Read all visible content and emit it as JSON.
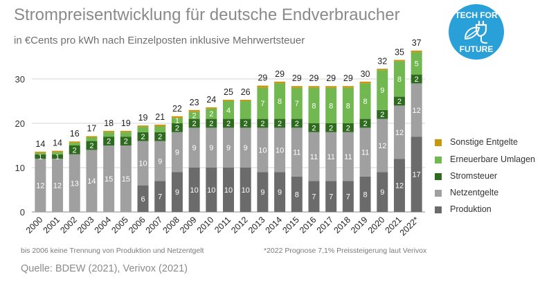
{
  "title": "Strompreisentwicklung für deutsche Endverbraucher",
  "subtitle": "in €Cents pro kWh nach Einzelposten inklusive Mehrwertsteuer",
  "note_left": "bis 2006 keine Trennung von Produktion und Netzentgelt",
  "note_right": "*2022 Prognose 7,1% Preissteigerung laut Verivox",
  "source": "Quelle: BDEW (2021), Verivox (2021)",
  "badge": {
    "top": "TECH FOR",
    "bottom": "FUTURE"
  },
  "colors": {
    "Produktion": "#6b6b6b",
    "Netzentgelte": "#a0a0a0",
    "Stromsteuer": "#2e6b1f",
    "Erneuerbare Umlagen": "#72b850",
    "Sonstige Entgelte": "#c8960f"
  },
  "chart_data": {
    "type": "bar",
    "stacked": true,
    "categories": [
      "2000",
      "2001",
      "2002",
      "2003",
      "2004",
      "2005",
      "2006",
      "2007",
      "2008",
      "2009",
      "2010",
      "2011",
      "2012",
      "2013",
      "2014",
      "2015",
      "2016",
      "2017",
      "2018",
      "2019",
      "2020",
      "2021",
      "2022*"
    ],
    "ylim": [
      0,
      40
    ],
    "yticks": [
      0,
      10,
      20,
      30
    ],
    "grid": true,
    "legend_position": "right",
    "series": [
      {
        "name": "Produktion",
        "values": [
          null,
          null,
          null,
          null,
          null,
          null,
          6,
          7,
          9,
          10,
          10,
          10,
          10,
          9,
          9,
          8,
          7,
          7,
          7,
          8,
          9,
          12,
          17
        ],
        "labels": [
          "",
          "",
          "",
          "",
          "",
          "",
          "6",
          "7",
          "9",
          "10",
          "10",
          "10",
          "10",
          "9",
          "9",
          "8",
          "7",
          "7",
          "7",
          "8",
          "9",
          "12",
          "17"
        ]
      },
      {
        "name": "Netzentgelte",
        "values": [
          12,
          12,
          13,
          14,
          15,
          15,
          10,
          9,
          9,
          9,
          9,
          9,
          9,
          10,
          10,
          11,
          11,
          11,
          11,
          11,
          12,
          12,
          12
        ],
        "labels": [
          "12",
          "12",
          "13",
          "14",
          "15",
          "15",
          "10",
          "9",
          "9",
          "9",
          "9",
          "9",
          "9",
          "10",
          "10",
          "11",
          "11",
          "11",
          "11",
          "11",
          "12",
          "12",
          "12"
        ]
      },
      {
        "name": "Stromsteuer",
        "values": [
          1,
          1,
          2,
          2,
          2,
          2,
          2,
          2,
          2,
          2,
          2,
          2,
          2,
          2,
          2,
          2,
          2,
          2,
          2,
          2,
          2,
          2,
          2
        ],
        "labels": [
          "1",
          "1",
          "2",
          "2",
          "2",
          "2",
          "2",
          "2",
          "2",
          "2",
          "2",
          "2",
          "2",
          "2",
          "2",
          "2",
          "2",
          "2",
          "2",
          "2",
          "2",
          "2",
          "2"
        ]
      },
      {
        "name": "Erneuerbare Umlagen",
        "values": [
          0.3,
          0.5,
          0.6,
          0.8,
          1,
          1,
          1.2,
          1.3,
          1.2,
          1.6,
          2.3,
          4,
          4,
          7,
          8,
          7,
          8,
          8,
          8,
          8,
          9,
          8,
          5
        ],
        "labels": [
          "",
          "",
          "",
          "",
          "",
          "",
          "",
          "",
          "1",
          "2",
          "2",
          "4",
          "",
          "7",
          "8",
          "7",
          "8",
          "8",
          "8",
          "8",
          "9",
          "8",
          "5"
        ]
      },
      {
        "name": "Sonstige Entgelte",
        "values": [
          0.3,
          0.3,
          0.3,
          0.3,
          0.3,
          0.3,
          0.3,
          0.4,
          0.4,
          0.4,
          0.3,
          0.3,
          0.3,
          0.5,
          0.4,
          0.4,
          0.4,
          0.4,
          0.4,
          0.4,
          0.3,
          0.3,
          0.4
        ]
      }
    ],
    "totals": [
      14,
      14,
      16,
      17,
      18,
      19,
      19,
      21,
      22,
      23,
      24,
      25,
      26,
      29,
      29,
      29,
      29,
      29,
      29,
      30,
      32,
      35,
      37
    ]
  }
}
